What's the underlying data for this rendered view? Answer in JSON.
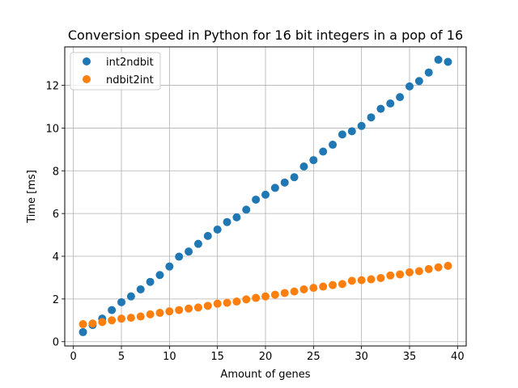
{
  "chart_data": {
    "type": "scatter",
    "title": "Conversion speed in Python for 16 bit integers in a pop of 16",
    "xlabel": "Amount of genes",
    "ylabel": "Time [ms]",
    "xlim": [
      -0.9,
      40.9
    ],
    "ylim": [
      -0.2,
      13.8
    ],
    "xticks": [
      0,
      5,
      10,
      15,
      20,
      25,
      30,
      35,
      40
    ],
    "yticks": [
      0,
      2,
      4,
      6,
      8,
      10,
      12
    ],
    "grid": true,
    "legend_position": "top-left",
    "series": [
      {
        "name": "int2ndbit",
        "color": "#1f77b4",
        "x": [
          1,
          2,
          3,
          4,
          5,
          6,
          7,
          8,
          9,
          10,
          11,
          12,
          13,
          14,
          15,
          16,
          17,
          18,
          19,
          20,
          21,
          22,
          23,
          24,
          25,
          26,
          27,
          28,
          29,
          30,
          31,
          32,
          33,
          34,
          35,
          36,
          37,
          38,
          39
        ],
        "y": [
          0.45,
          0.78,
          1.08,
          1.48,
          1.85,
          2.12,
          2.45,
          2.8,
          3.12,
          3.52,
          3.98,
          4.22,
          4.58,
          4.95,
          5.25,
          5.6,
          5.82,
          6.18,
          6.65,
          6.88,
          7.2,
          7.45,
          7.7,
          8.2,
          8.5,
          8.9,
          9.22,
          9.7,
          9.85,
          10.1,
          10.5,
          10.9,
          11.15,
          11.45,
          11.95,
          12.2,
          12.6,
          13.2,
          13.1
        ]
      },
      {
        "name": "ndbit2int",
        "color": "#ff7f0e",
        "x": [
          1,
          2,
          3,
          4,
          5,
          6,
          7,
          8,
          9,
          10,
          11,
          12,
          13,
          14,
          15,
          16,
          17,
          18,
          19,
          20,
          21,
          22,
          23,
          24,
          25,
          26,
          27,
          28,
          29,
          30,
          31,
          32,
          33,
          34,
          35,
          36,
          37,
          38,
          39
        ],
        "y": [
          0.82,
          0.85,
          0.92,
          1.0,
          1.08,
          1.12,
          1.18,
          1.28,
          1.35,
          1.42,
          1.48,
          1.55,
          1.6,
          1.68,
          1.78,
          1.82,
          1.88,
          1.98,
          2.05,
          2.12,
          2.2,
          2.28,
          2.35,
          2.45,
          2.52,
          2.58,
          2.65,
          2.7,
          2.85,
          2.88,
          2.92,
          2.98,
          3.1,
          3.15,
          3.25,
          3.3,
          3.4,
          3.48,
          3.55
        ]
      }
    ]
  }
}
